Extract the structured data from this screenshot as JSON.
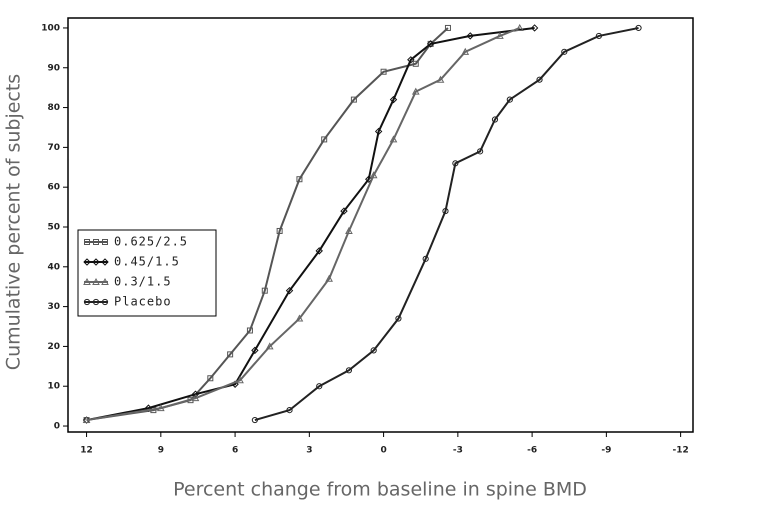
{
  "chart_data": {
    "type": "line",
    "x_label": "Percent change from baseline in spine BMD",
    "y_label": "Cumulative percent of subjects",
    "xlim": [
      12.75,
      -12.5
    ],
    "ylim": [
      -1.5,
      102.5
    ],
    "xticks": [
      12,
      9,
      6,
      3,
      0,
      -3,
      -6,
      -9,
      -12
    ],
    "yticks": [
      0,
      10,
      20,
      30,
      40,
      50,
      60,
      70,
      80,
      90,
      100
    ],
    "legend": "left",
    "series": [
      {
        "name": "0.625/2.5",
        "color": "#555555",
        "marker": "square",
        "x": [
          12,
          9.3,
          7.8,
          7.0,
          6.2,
          5.4,
          4.8,
          4.2,
          3.4,
          2.4,
          1.2,
          0,
          -1.3,
          -1.9,
          -2.6
        ],
        "values": [
          1.5,
          4,
          6.5,
          12,
          18,
          24,
          34,
          49,
          62,
          72,
          82,
          89,
          91,
          96,
          100
        ]
      },
      {
        "name": "0.45/1.5",
        "color": "#111111",
        "marker": "diamond",
        "x": [
          12,
          9.5,
          7.6,
          6.0,
          5.2,
          3.8,
          2.6,
          1.6,
          0.6,
          0.2,
          -0.4,
          -1.1,
          -1.9,
          -3.5,
          -6.1
        ],
        "values": [
          1.5,
          4.5,
          8,
          10.5,
          19,
          34,
          44,
          54,
          62,
          74,
          82,
          92,
          96,
          98,
          100
        ]
      },
      {
        "name": "0.3/1.5",
        "color": "#666666",
        "marker": "triangle",
        "x": [
          12,
          9,
          7.6,
          5.8,
          4.6,
          3.4,
          2.2,
          1.4,
          0.4,
          -0.4,
          -1.3,
          -2.3,
          -3.3,
          -4.7,
          -5.5
        ],
        "values": [
          1.5,
          4.5,
          7,
          11.5,
          20,
          27,
          37,
          49,
          63,
          72,
          84,
          87,
          94,
          98,
          100
        ]
      },
      {
        "name": "Placebo",
        "color": "#222222",
        "marker": "circle",
        "x": [
          5.2,
          3.8,
          2.6,
          1.4,
          0.4,
          -0.6,
          -1.7,
          -2.5,
          -2.9,
          -3.9,
          -4.5,
          -5.1,
          -6.3,
          -7.3,
          -8.7,
          -10.3
        ],
        "values": [
          1.5,
          4,
          10,
          14,
          19,
          27,
          42,
          54,
          66,
          69,
          77,
          82,
          87,
          94,
          98,
          100
        ]
      }
    ]
  }
}
